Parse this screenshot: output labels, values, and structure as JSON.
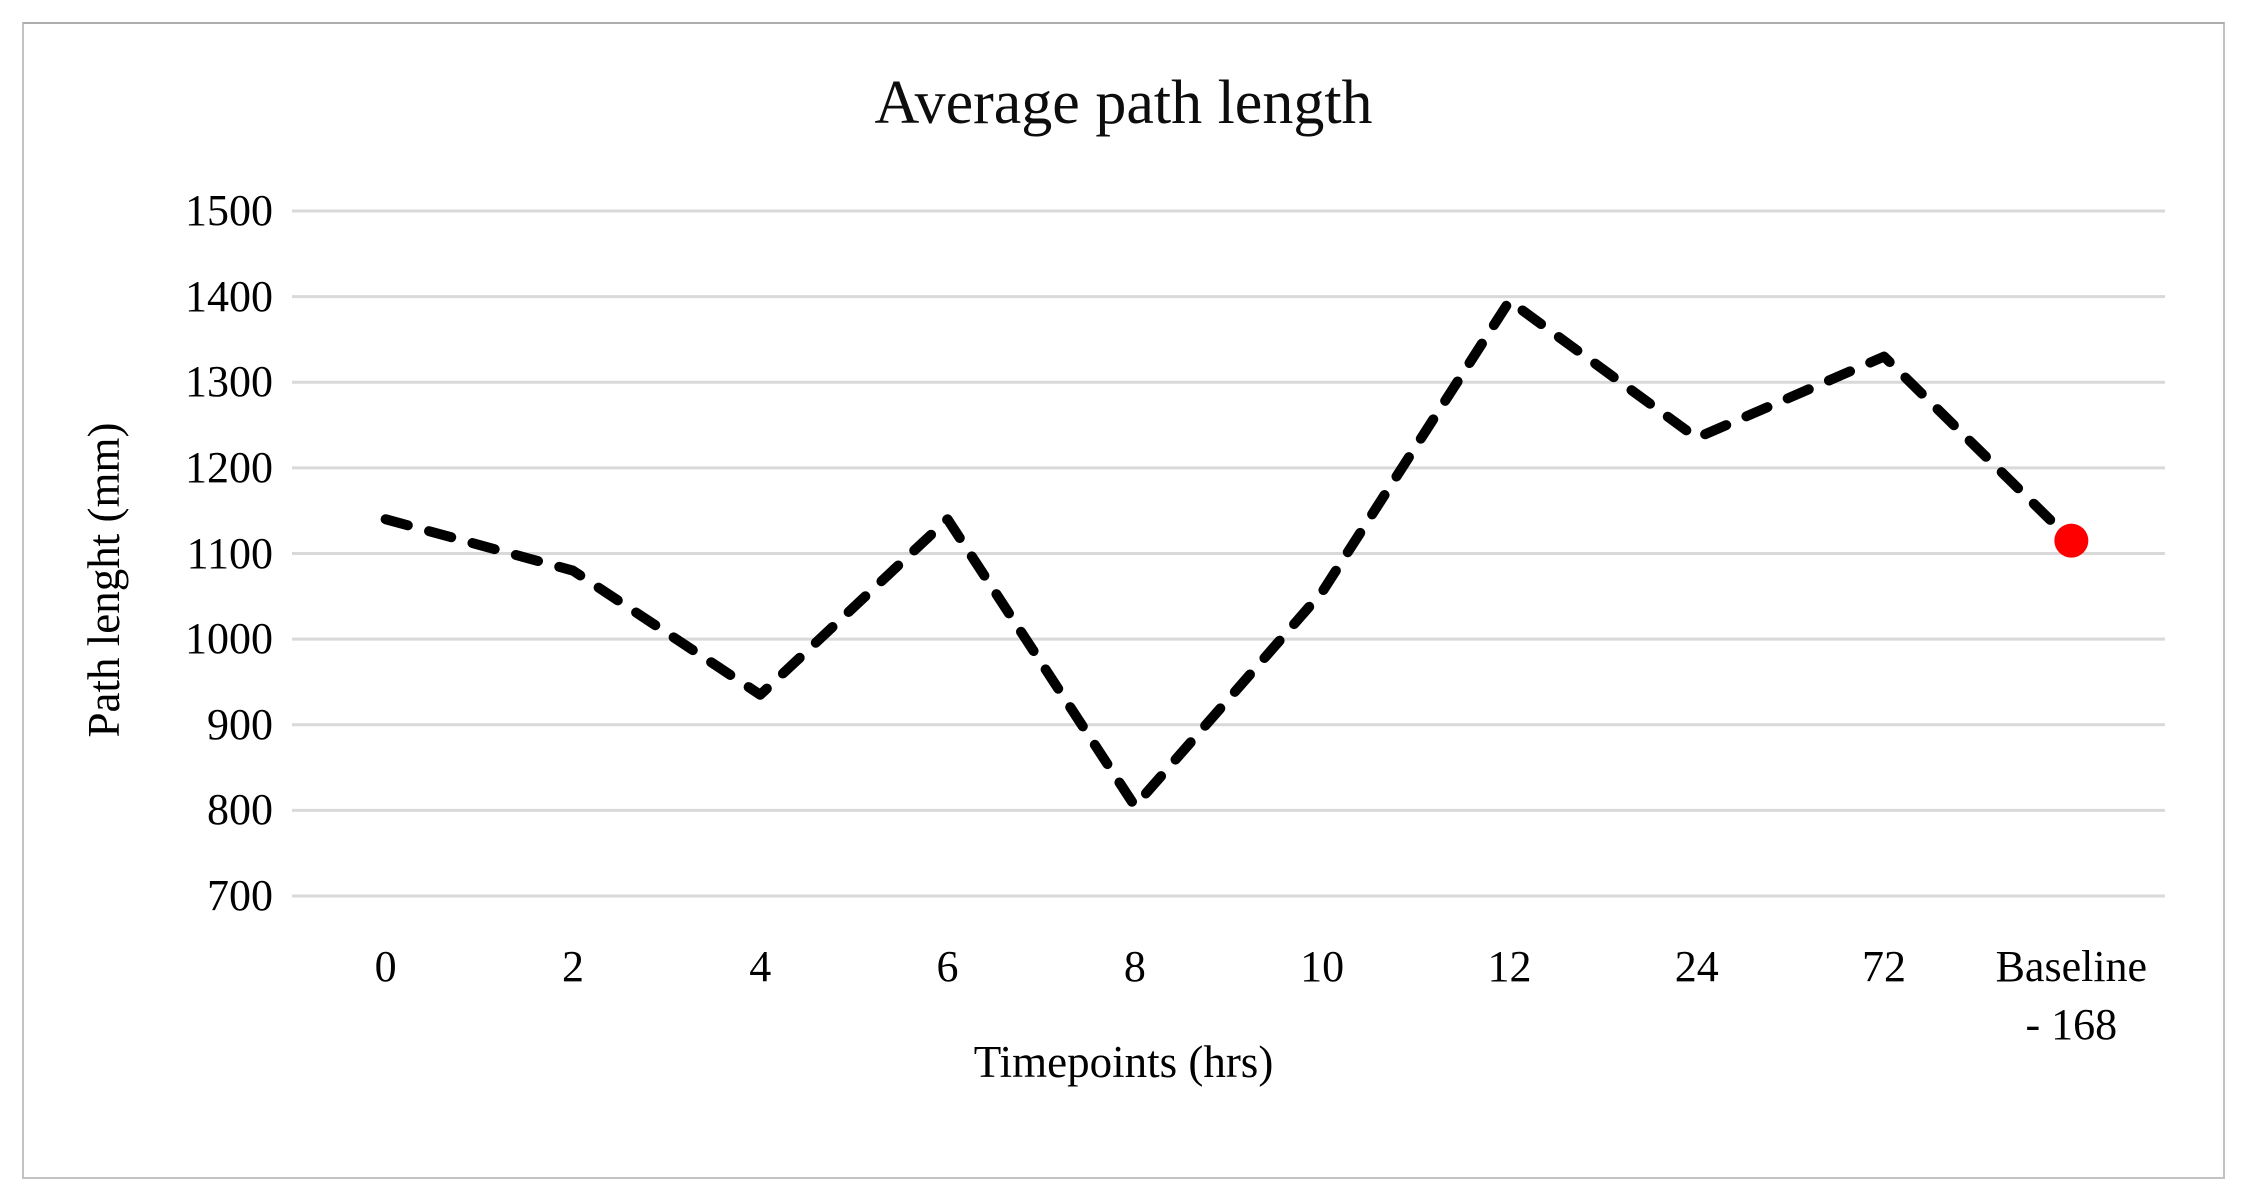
{
  "figure": {
    "border_color": "#c2c2c2",
    "background": "#ffffff"
  },
  "chart_data": {
    "type": "line",
    "title": "Average path length",
    "xlabel": "Timepoints (hrs)",
    "ylabel": "Path lenght (mm)",
    "categories": [
      "0",
      "2",
      "4",
      "6",
      "8",
      "10",
      "12",
      "24",
      "72",
      "Baseline\n- 168"
    ],
    "series": [
      {
        "name": "Average path length",
        "values": [
          1140,
          1080,
          935,
          1140,
          805,
          1055,
          1395,
          1235,
          1330,
          1115
        ],
        "line_style": "dashed",
        "line_color": "#000000"
      }
    ],
    "y_ticks": [
      1500,
      1400,
      1300,
      1200,
      1100,
      1000,
      900,
      800,
      700
    ],
    "ylim": [
      700,
      1500
    ],
    "grid": true,
    "gridline_color": "#d9d9d9",
    "legend_position": "none",
    "last_point_marker": {
      "shape": "circle",
      "color": "#fe0000"
    }
  }
}
